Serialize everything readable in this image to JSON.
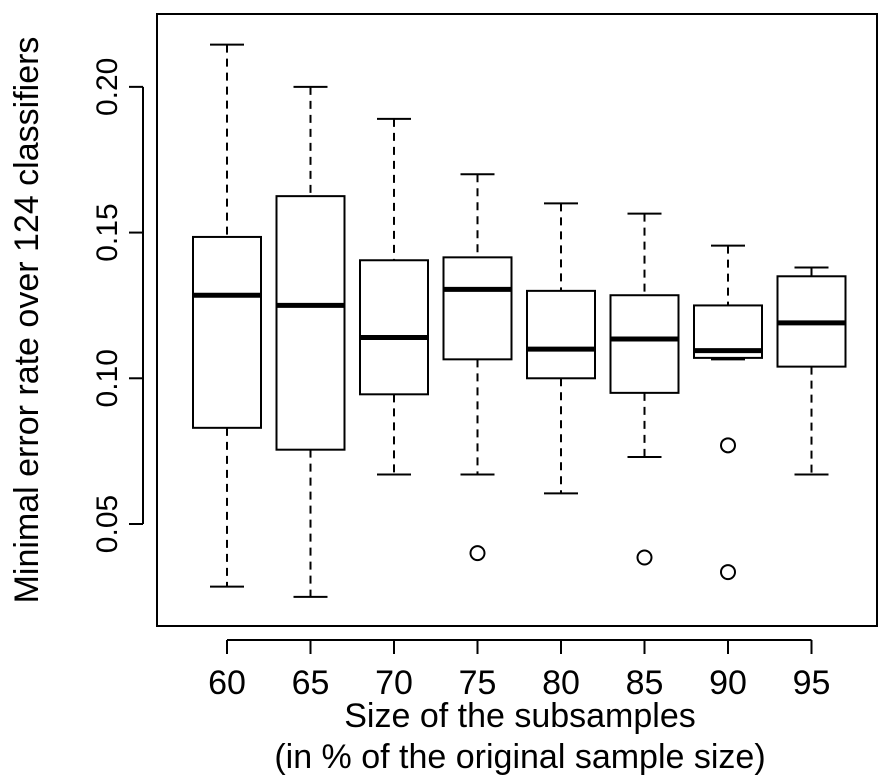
{
  "chart_data": {
    "type": "box",
    "title": "",
    "xlabel_line1": "Size of the subsamples",
    "xlabel_line2": "(in % of the original sample size)",
    "ylabel": "Minimal error rate over 124 classifiers",
    "ylim": [
      0.015,
      0.225
    ],
    "yticks": [
      "0.05",
      "0.10",
      "0.15",
      "0.20"
    ],
    "ytick_values": [
      0.05,
      0.1,
      0.15,
      0.2
    ],
    "categories": [
      "60",
      "65",
      "70",
      "75",
      "80",
      "85",
      "90",
      "95"
    ],
    "boxes": [
      {
        "min": 0.0285,
        "q1": 0.083,
        "median": 0.1285,
        "q3": 0.1485,
        "max": 0.2145,
        "outliers": []
      },
      {
        "min": 0.025,
        "q1": 0.0755,
        "median": 0.125,
        "q3": 0.1625,
        "max": 0.2,
        "outliers": []
      },
      {
        "min": 0.067,
        "q1": 0.0945,
        "median": 0.114,
        "q3": 0.1405,
        "max": 0.189,
        "outliers": []
      },
      {
        "min": 0.067,
        "q1": 0.1065,
        "median": 0.1305,
        "q3": 0.1415,
        "max": 0.17,
        "outliers": [
          0.04
        ]
      },
      {
        "min": 0.0605,
        "q1": 0.1,
        "median": 0.11,
        "q3": 0.13,
        "max": 0.16,
        "outliers": []
      },
      {
        "min": 0.073,
        "q1": 0.095,
        "median": 0.1135,
        "q3": 0.1285,
        "max": 0.1565,
        "outliers": [
          0.0385
        ]
      },
      {
        "min": 0.1065,
        "q1": 0.107,
        "median": 0.1095,
        "q3": 0.125,
        "max": 0.1455,
        "outliers": [
          0.077,
          0.0335
        ]
      },
      {
        "min": 0.067,
        "q1": 0.104,
        "median": 0.119,
        "q3": 0.135,
        "max": 0.138,
        "outliers": []
      }
    ]
  }
}
